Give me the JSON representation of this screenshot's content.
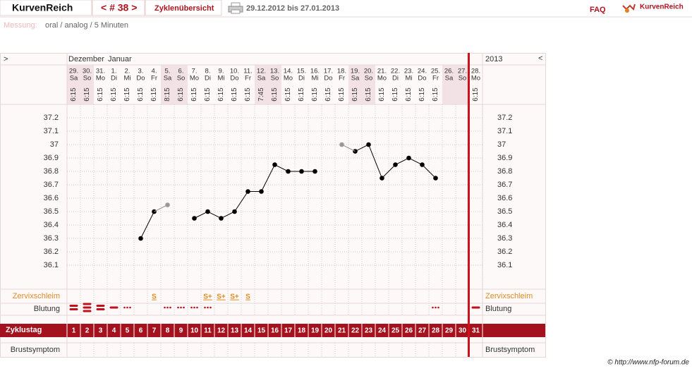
{
  "header": {
    "brand": "KurvenReich",
    "cycle_nav": "< # 38 >",
    "overview": "Zyklenübersicht",
    "period": "29.12.2012 bis 27.01.2013",
    "faq": "FAQ",
    "logo": "KurvenReich"
  },
  "measurement": {
    "label": "Messung:",
    "value": "oral / analog / 5 Minuten"
  },
  "chart_data": {
    "type": "line",
    "nav_left": ">",
    "nav_right": "<",
    "months": [
      "Dezember",
      "Januar"
    ],
    "year": "2013",
    "categories": [
      "29.",
      "30.",
      "31.",
      "1.",
      "2.",
      "3.",
      "4.",
      "5.",
      "6.",
      "7.",
      "8.",
      "9.",
      "10.",
      "11.",
      "12.",
      "13.",
      "14.",
      "15.",
      "16.",
      "17.",
      "18.",
      "19.",
      "20.",
      "21.",
      "22.",
      "23.",
      "24.",
      "25.",
      "26.",
      "27.",
      "28."
    ],
    "weekdays": [
      "Sa",
      "So",
      "Mo",
      "Di",
      "Mi",
      "Do",
      "Fr",
      "Sa",
      "So",
      "Mo",
      "Di",
      "Mi",
      "Do",
      "Fr",
      "Sa",
      "So",
      "Mo",
      "Di",
      "Mi",
      "Do",
      "Fr",
      "Sa",
      "So",
      "Mo",
      "Di",
      "Mi",
      "Do",
      "Fr",
      "Sa",
      "So",
      "Mo"
    ],
    "times": [
      "6:15",
      "6:15",
      "6:15",
      "6:15",
      "6:15",
      "6:15",
      "6:15",
      "8:15",
      "6:15",
      "6:15",
      "6:15",
      "6:15",
      "6:15",
      "6:15",
      "7:45",
      "6:15",
      "6:15",
      "6:15",
      "6:15",
      "6:15",
      "6:15",
      "6:15",
      "6:15",
      "6:15",
      "6:15",
      "6:15",
      "6:15",
      "6:15",
      null,
      null,
      "6:15"
    ],
    "series": [
      {
        "color": "#000000",
        "values": [
          null,
          null,
          null,
          null,
          null,
          36.3,
          36.5,
          null,
          null,
          36.45,
          36.5,
          36.45,
          36.5,
          36.65,
          36.65,
          36.85,
          36.8,
          36.8,
          36.8,
          null,
          null,
          36.95,
          37,
          36.75,
          36.85,
          36.9,
          36.85,
          36.75,
          null,
          null,
          null
        ]
      },
      {
        "color": "#999999",
        "values": [
          null,
          null,
          null,
          null,
          null,
          null,
          null,
          36.55,
          null,
          null,
          null,
          null,
          null,
          null,
          null,
          null,
          null,
          null,
          null,
          null,
          37,
          null,
          null,
          null,
          null,
          null,
          null,
          null,
          null,
          null,
          null
        ]
      }
    ],
    "ylim": [
      36.0,
      37.3
    ],
    "yticks": [
      36.1,
      36.2,
      36.3,
      36.4,
      36.5,
      36.6,
      36.7,
      36.8,
      36.9,
      37,
      37.1,
      37.2
    ],
    "grid": true,
    "mucus_label": "Zervixschleim",
    "mucus": [
      null,
      null,
      null,
      null,
      null,
      null,
      "S",
      null,
      null,
      null,
      "S+",
      "S+",
      "S+",
      "S",
      null,
      null,
      null,
      null,
      null,
      null,
      null,
      null,
      null,
      null,
      null,
      null,
      null,
      null,
      null,
      null,
      null
    ],
    "bleeding_label": "Blutung",
    "bleeding": [
      3,
      4,
      3,
      2,
      1,
      null,
      null,
      1,
      1,
      1,
      1,
      null,
      null,
      null,
      null,
      null,
      null,
      null,
      null,
      null,
      null,
      null,
      null,
      null,
      null,
      null,
      null,
      1,
      null,
      null,
      2
    ],
    "cycle_day_label": "Zyklustag",
    "cycle_days": [
      1,
      2,
      3,
      4,
      5,
      6,
      7,
      8,
      9,
      10,
      11,
      12,
      13,
      14,
      15,
      16,
      17,
      18,
      19,
      20,
      21,
      22,
      23,
      24,
      25,
      26,
      27,
      28,
      29,
      30,
      31
    ],
    "breast_label": "Brustsymptom"
  },
  "footer": "© http://www.nfp-forum.de"
}
